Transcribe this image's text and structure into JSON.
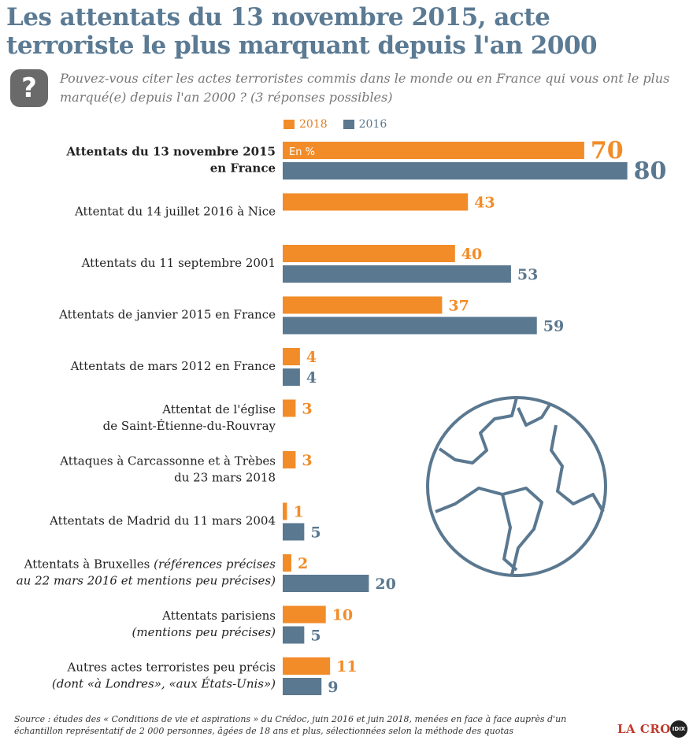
{
  "colors": {
    "s2018": "#f28c28",
    "s2016": "#5a7890",
    "title": "#5b7a93"
  },
  "chart_data": {
    "type": "bar",
    "orientation": "horizontal",
    "title": "Les attentats du 13 novembre 2015, acte terroriste le plus marquant depuis l'an 2000",
    "question": "Pouvez-vous citer les actes terroristes commis dans le monde ou en France qui vous ont le plus marqué(e) depuis l'an 2000 ? (3 réponses possibles)",
    "unit_label": "En %",
    "xlim": [
      0,
      80
    ],
    "series": [
      {
        "name": "2018",
        "color": "#f28c28",
        "values": [
          70,
          43,
          40,
          37,
          4,
          3,
          3,
          1,
          2,
          10,
          11
        ]
      },
      {
        "name": "2016",
        "color": "#5a7890",
        "values": [
          80,
          null,
          53,
          59,
          4,
          null,
          null,
          5,
          20,
          5,
          9
        ]
      }
    ],
    "categories": [
      {
        "lines": [
          [
            {
              "t": "Attentats du 13 novembre 2015",
              "i": false
            }
          ],
          [
            {
              "t": "en France",
              "i": false
            }
          ]
        ],
        "bold": true
      },
      {
        "lines": [
          [
            {
              "t": "Attentat du 14 juillet 2016 à Nice",
              "i": false
            }
          ]
        ],
        "bold": false
      },
      {
        "lines": [
          [
            {
              "t": "Attentats du 11 septembre 2001",
              "i": false
            }
          ]
        ],
        "bold": false
      },
      {
        "lines": [
          [
            {
              "t": "Attentats de janvier 2015 en France",
              "i": false
            }
          ]
        ],
        "bold": false
      },
      {
        "lines": [
          [
            {
              "t": "Attentats de mars 2012 en France",
              "i": false
            }
          ]
        ],
        "bold": false
      },
      {
        "lines": [
          [
            {
              "t": "Attentat de l'église",
              "i": false
            }
          ],
          [
            {
              "t": "de Saint-Étienne-du-Rouvray",
              "i": false
            }
          ]
        ],
        "bold": false
      },
      {
        "lines": [
          [
            {
              "t": "Attaques à Carcassonne et à Trèbes",
              "i": false
            }
          ],
          [
            {
              "t": "du 23 mars 2018",
              "i": false
            }
          ]
        ],
        "bold": false
      },
      {
        "lines": [
          [
            {
              "t": "Attentats de Madrid du 11 mars 2004",
              "i": false
            }
          ]
        ],
        "bold": false
      },
      {
        "lines": [
          [
            {
              "t": "Attentats à Bruxelles ",
              "i": false
            },
            {
              "t": "(références précises",
              "i": true
            }
          ],
          [
            {
              "t": "au 22 mars 2016 et mentions peu précises)",
              "i": true
            }
          ]
        ],
        "bold": false
      },
      {
        "lines": [
          [
            {
              "t": "Attentats parisiens",
              "i": false
            }
          ],
          [
            {
              "t": "(mentions peu précises)",
              "i": true
            }
          ]
        ],
        "bold": false
      },
      {
        "lines": [
          [
            {
              "t": "Autres actes terroristes peu précis",
              "i": false
            }
          ],
          [
            {
              "t": "(dont «à Londres», «aux États-Unis»)",
              "i": true
            }
          ]
        ],
        "bold": false
      }
    ]
  },
  "header": {
    "title": "Les attentats du 13 novembre 2015, acte terroriste le plus marquant depuis l'an 2000",
    "question_mark": "?",
    "question": "Pouvez-vous citer les actes terroristes commis dans le monde ou en France qui vous ont le plus marqué(e) depuis l'an 2000 ? (3 réponses possibles)"
  },
  "legend": {
    "label_2018": "2018",
    "label_2016": "2016"
  },
  "footer": {
    "source": "Source : études des « Conditions de vie et aspirations » du Crédoc, juin 2016 et juin 2018, menées en face à face auprès d'un échantillon représentatif de 2 000 personnes, âgées de 18 ans et plus, sélectionnées selon la méthode des quotas",
    "brand": "LA CROIX",
    "partner": "IDIX"
  }
}
